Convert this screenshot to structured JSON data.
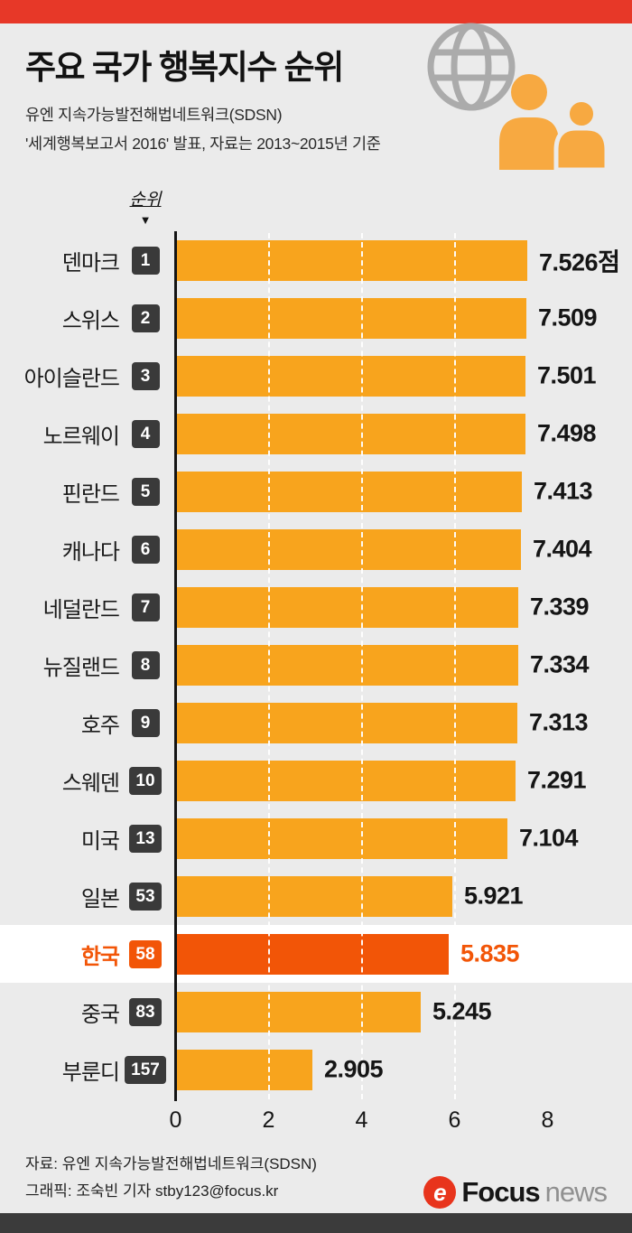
{
  "header": {
    "title": "주요 국가 행복지수 순위",
    "subtitle_line1": "유엔 지속가능발전해법네트워크(SDSN)",
    "subtitle_line2": "'세계행복보고서 2016' 발표, 자료는 2013~2015년 기준"
  },
  "chart_data": {
    "type": "bar",
    "orientation": "horizontal",
    "title": "주요 국가 행복지수 순위",
    "rank_header": "순위",
    "rank_arrow": "▼",
    "xlim": [
      0,
      8
    ],
    "x_ticks": [
      0,
      2,
      4,
      6,
      8
    ],
    "gridlines": [
      2,
      4,
      6
    ],
    "legend": "none",
    "grid": "dashed-white-vertical",
    "rows": [
      {
        "country": "덴마크",
        "rank": "1",
        "value": 7.526,
        "label": "7.526점",
        "highlight": false
      },
      {
        "country": "스위스",
        "rank": "2",
        "value": 7.509,
        "label": "7.509",
        "highlight": false
      },
      {
        "country": "아이슬란드",
        "rank": "3",
        "value": 7.501,
        "label": "7.501",
        "highlight": false
      },
      {
        "country": "노르웨이",
        "rank": "4",
        "value": 7.498,
        "label": "7.498",
        "highlight": false
      },
      {
        "country": "핀란드",
        "rank": "5",
        "value": 7.413,
        "label": "7.413",
        "highlight": false
      },
      {
        "country": "캐나다",
        "rank": "6",
        "value": 7.404,
        "label": "7.404",
        "highlight": false
      },
      {
        "country": "네덜란드",
        "rank": "7",
        "value": 7.339,
        "label": "7.339",
        "highlight": false
      },
      {
        "country": "뉴질랜드",
        "rank": "8",
        "value": 7.334,
        "label": "7.334",
        "highlight": false
      },
      {
        "country": "호주",
        "rank": "9",
        "value": 7.313,
        "label": "7.313",
        "highlight": false
      },
      {
        "country": "스웨덴",
        "rank": "10",
        "value": 7.291,
        "label": "7.291",
        "highlight": false
      },
      {
        "country": "미국",
        "rank": "13",
        "value": 7.104,
        "label": "7.104",
        "highlight": false
      },
      {
        "country": "일본",
        "rank": "53",
        "value": 5.921,
        "label": "5.921",
        "highlight": false
      },
      {
        "country": "한국",
        "rank": "58",
        "value": 5.835,
        "label": "5.835",
        "highlight": true
      },
      {
        "country": "중국",
        "rank": "83",
        "value": 5.245,
        "label": "5.245",
        "highlight": false
      },
      {
        "country": "부룬디",
        "rank": "157",
        "value": 2.905,
        "label": "2.905",
        "highlight": false
      }
    ]
  },
  "footer": {
    "source": "자료: 유엔 지속가능발전해법네트워크(SDSN)",
    "credit": "그래픽: 조숙빈 기자 stby123@focus.kr",
    "logo": {
      "symbol": "e",
      "brand": "Focus",
      "suffix": "news"
    }
  },
  "icons": {
    "globe": "globe-icon",
    "people": "two-people-icon"
  },
  "colors": {
    "background": "#ebebeb",
    "top_bar": "#e73828",
    "bottom_bar": "#3b3b3b",
    "bar": "#f8a41d",
    "highlight": "#f25507",
    "badge": "#3a3a3a",
    "globe": "#ababab",
    "people": "#f7a941",
    "logo_red": "#e8341c"
  }
}
